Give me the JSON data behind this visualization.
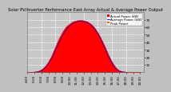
{
  "title": "Solar PV/Inverter Performance East Array Actual & Average Power Output",
  "title_fontsize": 3.8,
  "bg_color": "#c0c0c0",
  "plot_bg_color": "#c8c8c8",
  "fill_color": "#ff0000",
  "line_color": "#dd0000",
  "avg_line_color": "#0000cc",
  "vertical_line_color": "#ffffff",
  "grid_color": "#ffffff",
  "x_hours": [
    4.0,
    4.5,
    5.0,
    5.5,
    6.0,
    6.5,
    7.0,
    7.5,
    8.0,
    8.5,
    9.0,
    9.5,
    10.0,
    10.5,
    11.0,
    11.5,
    12.0,
    12.5,
    13.0,
    13.5,
    14.0,
    14.5,
    15.0,
    15.5,
    16.0,
    16.5,
    17.0,
    17.5,
    18.0,
    18.5,
    19.0,
    19.5,
    20.0
  ],
  "y_actual": [
    0,
    0.02,
    0.2,
    0.8,
    3.0,
    7.0,
    13.0,
    22.0,
    33.0,
    44.0,
    53.0,
    60.0,
    64.0,
    67.0,
    68.5,
    69.0,
    68.5,
    67.0,
    64.0,
    59.0,
    52.0,
    43.0,
    33.0,
    22.0,
    13.0,
    6.0,
    2.0,
    0.5,
    0.1,
    0.02,
    0,
    0,
    0
  ],
  "y_avg": [
    0,
    0.01,
    0.1,
    0.5,
    2.0,
    5.5,
    11.0,
    19.0,
    29.5,
    40.0,
    49.0,
    56.5,
    62.0,
    65.5,
    67.0,
    68.0,
    67.5,
    66.0,
    63.0,
    58.0,
    51.0,
    42.0,
    32.0,
    21.5,
    12.0,
    5.0,
    1.5,
    0.4,
    0.05,
    0.01,
    0,
    0,
    0
  ],
  "ylim": [
    0,
    80
  ],
  "yticks": [
    10,
    20,
    30,
    40,
    50,
    60,
    70
  ],
  "ytick_labels": [
    "10",
    "20",
    "30",
    "40",
    "50",
    "60",
    "70"
  ],
  "xlim": [
    4.0,
    20.5
  ],
  "xtick_positions": [
    4.0,
    5.0,
    6.0,
    7.0,
    8.0,
    9.0,
    10.0,
    11.0,
    12.0,
    13.0,
    14.0,
    15.0,
    16.0,
    17.0,
    18.0,
    19.0,
    20.0
  ],
  "xtick_labels": [
    "4:00",
    "5:00",
    "6:00",
    "7:00",
    "8:00",
    "9:00",
    "10:00",
    "11:00",
    "12:00",
    "13:00",
    "14:00",
    "15:00",
    "16:00",
    "17:00",
    "18:00",
    "19:00",
    "20:00"
  ],
  "legend_labels": [
    "Actual Power (kW)",
    "Average Power (kW)",
    "Peak Power"
  ],
  "legend_colors": [
    "#ff0000",
    "#0000ff",
    "#ff6600"
  ],
  "vline_x": 12.0,
  "font_color": "#000000",
  "tick_fontsize": 3.0,
  "legend_fontsize": 2.8,
  "grid_vlines": [
    6.0,
    8.0,
    10.0,
    12.0,
    14.0,
    16.0,
    18.0
  ],
  "grid_hlines": [
    10,
    20,
    30,
    40,
    50,
    60,
    70
  ]
}
